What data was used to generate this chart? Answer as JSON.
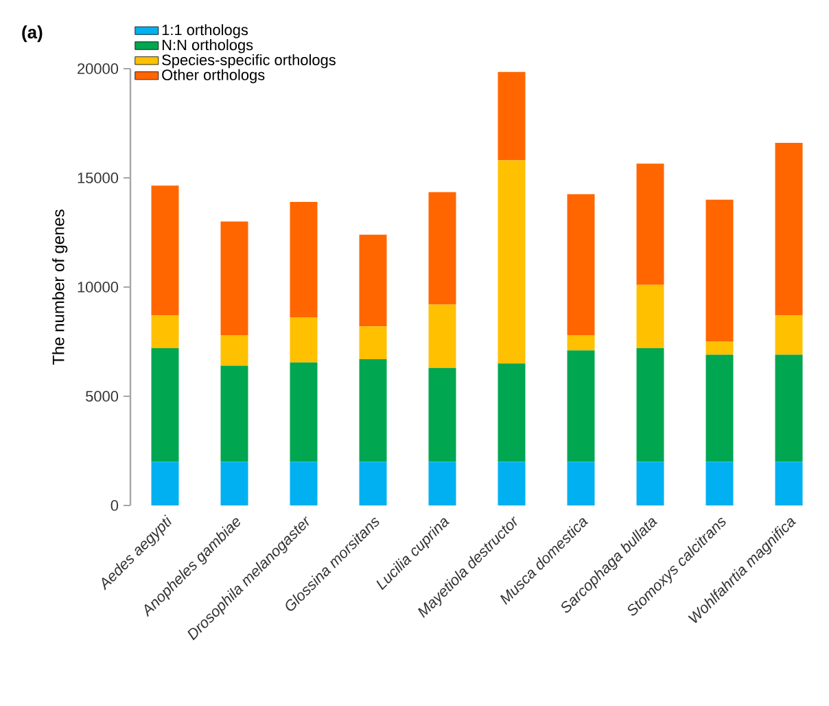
{
  "chart_data": {
    "type": "bar",
    "stacked": true,
    "title": "(a)",
    "ylabel": "The number of genes",
    "categories": [
      "Aedes aegypti",
      "Anopheles gambiae",
      "Drosophila melanogaster",
      "Glossina morsitans",
      "Lucilia cuprina",
      "Mayetiola destructor",
      "Musca domestica",
      "Sarcophaga bullata",
      "Stomoxys calcitrans",
      "Wohlfahrtia magnifica"
    ],
    "series": [
      {
        "name": "1:1 orthologs",
        "color": "#00b0f0",
        "values": [
          2000,
          2000,
          2000,
          2000,
          2000,
          2000,
          2000,
          2000,
          2000,
          2000
        ]
      },
      {
        "name": "N:N orthologs",
        "color": "#00a650",
        "values": [
          5200,
          4400,
          4550,
          4700,
          4300,
          4500,
          5100,
          5200,
          4900,
          4900
        ]
      },
      {
        "name": "Species-specific orthologs",
        "color": "#ffc000",
        "values": [
          1500,
          1400,
          2050,
          1500,
          2900,
          9300,
          700,
          2900,
          600,
          1800
        ]
      },
      {
        "name": "Other orthologs",
        "color": "#ff6600",
        "values": [
          5950,
          5200,
          5300,
          4200,
          5150,
          4050,
          6450,
          5550,
          6500,
          7900
        ]
      }
    ],
    "ylim": [
      0,
      20000
    ],
    "yticks": [
      0,
      5000,
      10000,
      15000,
      20000
    ],
    "legend": "top left",
    "grid": false
  }
}
